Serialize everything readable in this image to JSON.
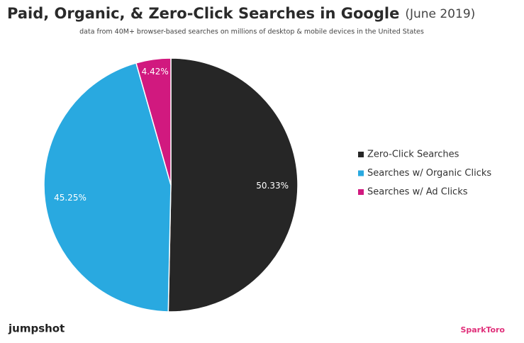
{
  "chart_data": {
    "type": "pie",
    "title": "Paid, Organic, & Zero-Click Searches in Google",
    "title_note": "(June 2019)",
    "subtitle": "data from 40M+ browser-based searches on millions of desktop & mobile devices in the United States",
    "categories": [
      "Zero-Click Searches",
      "Searches w/ Organic Clicks",
      "Searches w/ Ad Clicks"
    ],
    "values": [
      50.33,
      45.25,
      4.42
    ],
    "value_labels": [
      "50.33%",
      "45.25%",
      "4.42%"
    ],
    "colors": [
      "#262626",
      "#29a9e0",
      "#d1197f"
    ],
    "legend": "right"
  },
  "branding": {
    "left": "jumpshot",
    "right": "SparkToro"
  }
}
